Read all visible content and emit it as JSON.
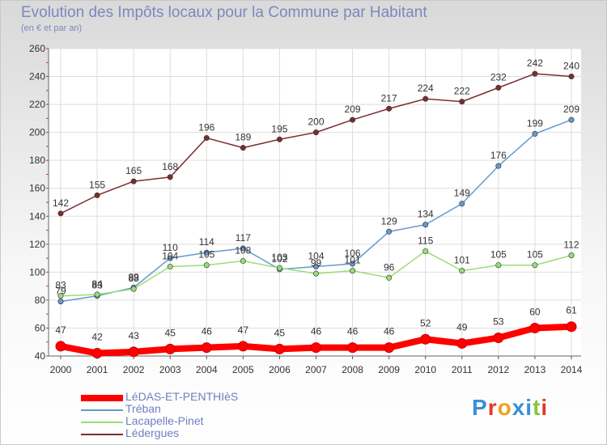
{
  "chart_data": {
    "type": "line",
    "title": "Evolution des Impôts locaux pour la Commune par Habitant",
    "subtitle": "(en € et par an)",
    "categories": [
      "2000",
      "2001",
      "2002",
      "2003",
      "2004",
      "2005",
      "2006",
      "2007",
      "2008",
      "2009",
      "2010",
      "2011",
      "2012",
      "2013",
      "2014"
    ],
    "ylim": [
      40,
      260
    ],
    "yticks": [
      "40",
      "60",
      "80",
      "100",
      "120",
      "140",
      "160",
      "180",
      "200",
      "220",
      "240",
      "260"
    ],
    "grid": true,
    "series": [
      {
        "name": "LéDAS-ET-PENTHIèS",
        "color": "#ff0000",
        "values": [
          47,
          42,
          43,
          45,
          46,
          47,
          45,
          46,
          46,
          46,
          52,
          49,
          53,
          60,
          61
        ]
      },
      {
        "name": "Tréban",
        "color": "#6699cc",
        "values": [
          79,
          83,
          89,
          110,
          114,
          117,
          102,
          104,
          106,
          129,
          134,
          149,
          176,
          199,
          209
        ]
      },
      {
        "name": "Lacapelle-Pinet",
        "color": "#99dd77",
        "values": [
          83,
          84,
          88,
          104,
          105,
          108,
          103,
          99,
          101,
          96,
          115,
          101,
          105,
          105,
          112
        ]
      },
      {
        "name": "Lédergues",
        "color": "#7a2e2e",
        "values": [
          142,
          155,
          165,
          168,
          196,
          189,
          195,
          200,
          209,
          217,
          224,
          222,
          232,
          242,
          240
        ]
      }
    ]
  },
  "logo": {
    "text": "Proxiti"
  }
}
